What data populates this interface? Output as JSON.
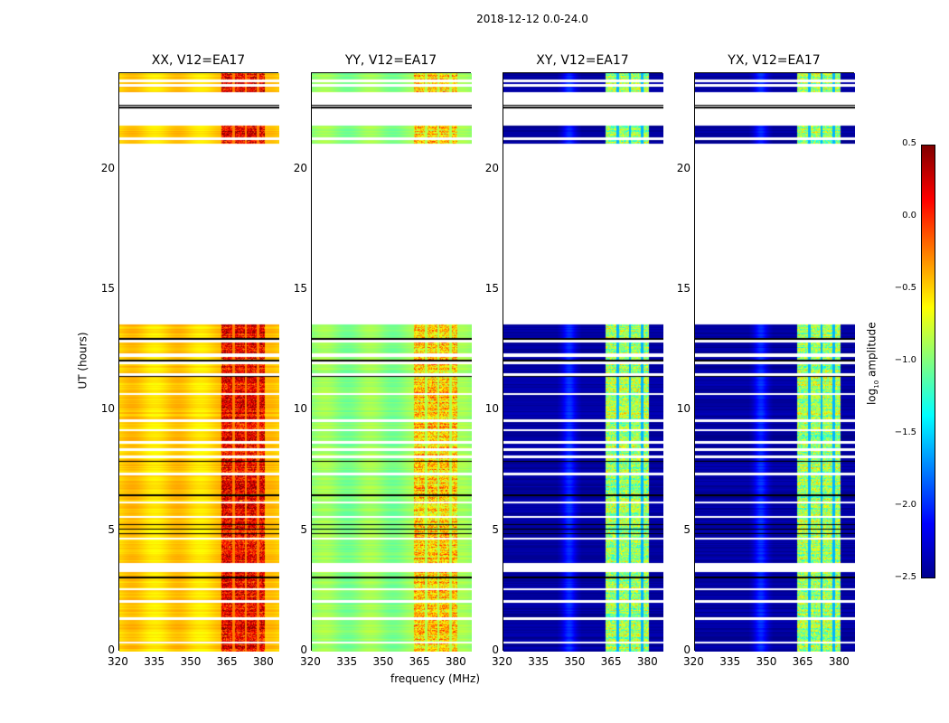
{
  "chart_data": {
    "type": "heatmap",
    "title": "2018-12-12 0.0-24.0",
    "xlabel": "frequency (MHz)",
    "ylabel": "UT (hours)",
    "xlim": [
      320,
      386
    ],
    "ylim": [
      0,
      24
    ],
    "xticks": [
      "320",
      "335",
      "350",
      "365",
      "380"
    ],
    "yticks": [
      "0",
      "5",
      "10",
      "15",
      "20"
    ],
    "colorbar": {
      "label": "log10 amplitude",
      "range": [
        -2.5,
        0.5
      ],
      "ticks": [
        "0.5",
        "0.0",
        "−0.5",
        "−1.0",
        "−1.5",
        "−2.0",
        "−2.5"
      ],
      "colormap": "jet"
    },
    "data_blocks_hours": [
      [
        0,
        3.3
      ],
      [
        3.7,
        11.4
      ],
      [
        11.55,
        12.25
      ],
      [
        12.4,
        13.6
      ],
      [
        21.1,
        21.85
      ],
      [
        23.25,
        24.0
      ]
    ],
    "flagged_lines_hours": [
      0.4,
      1.4,
      2.1,
      2.6,
      4.7,
      5.6,
      6.2,
      7.4,
      8.1,
      8.4,
      8.7,
      9.2,
      9.6,
      10.7,
      12.0,
      12.9,
      23.5,
      23.7,
      21.3
    ],
    "black_lines_hours": [
      3.1,
      4.9,
      5.1,
      5.3,
      6.5,
      7.9,
      11.45,
      12.1,
      13.0,
      22.6,
      22.7
    ],
    "rfi_band_mhz": [
      362,
      380
    ],
    "rfi_gaps_mhz": [
      367,
      372,
      377
    ],
    "panels": [
      {
        "title": "XX, V12=EA17",
        "base_level": -0.5,
        "rfi_level": 0.15
      },
      {
        "title": "YY, V12=EA17",
        "base_level": -0.95,
        "rfi_level": -0.45
      },
      {
        "title": "XY, V12=EA17",
        "base_level": -2.4,
        "rfi_level": -0.9
      },
      {
        "title": "YX, V12=EA17",
        "base_level": -2.4,
        "rfi_level": -0.9
      }
    ]
  }
}
